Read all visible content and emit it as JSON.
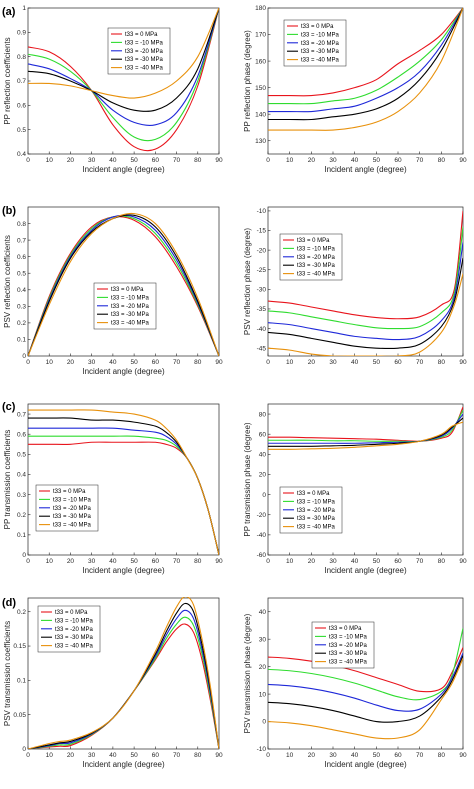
{
  "row_labels": [
    "(a)",
    "(b)",
    "(c)",
    "(d)"
  ],
  "colors": {
    "t33 = 0 MPa": "#e8141c",
    "t33 = -10 MPa": "#2fdc2f",
    "t33 = -20 MPa": "#1e28d8",
    "t33 = -30 MPa": "#000000",
    "t33 = -40 MPa": "#e8910c"
  },
  "chart_data": [
    {
      "type": "line",
      "xlabel": "Incident angle (degree)",
      "ylabel": "PP reflection coefficients",
      "xlim": [
        0,
        90
      ],
      "ylim": [
        0.4,
        1
      ],
      "xticks": [
        "0",
        "10",
        "20",
        "30",
        "40",
        "50",
        "60",
        "70",
        "80",
        "90"
      ],
      "yticks": [
        "0.4",
        "0.5",
        "0.6",
        "0.7",
        "0.8",
        "0.9",
        "1"
      ],
      "legend_position": "top-center",
      "x": [
        0,
        10,
        20,
        30,
        40,
        50,
        60,
        70,
        80,
        90
      ],
      "series": [
        {
          "name": "t33 = 0 MPa",
          "values": [
            0.84,
            0.82,
            0.76,
            0.66,
            0.52,
            0.43,
            0.42,
            0.5,
            0.68,
            1.0
          ]
        },
        {
          "name": "t33 = -10 MPa",
          "values": [
            0.81,
            0.79,
            0.74,
            0.66,
            0.55,
            0.47,
            0.46,
            0.53,
            0.7,
            1.0
          ]
        },
        {
          "name": "t33 = -20 MPa",
          "values": [
            0.77,
            0.75,
            0.71,
            0.66,
            0.58,
            0.53,
            0.52,
            0.57,
            0.72,
            1.0
          ]
        },
        {
          "name": "t33 = -30 MPa",
          "values": [
            0.74,
            0.73,
            0.7,
            0.66,
            0.61,
            0.58,
            0.58,
            0.63,
            0.75,
            1.0
          ]
        },
        {
          "name": "t33 = -40 MPa",
          "values": [
            0.69,
            0.69,
            0.68,
            0.66,
            0.64,
            0.63,
            0.65,
            0.7,
            0.8,
            1.0
          ]
        }
      ]
    },
    {
      "type": "line",
      "xlabel": "Incident angle (degree)",
      "ylabel": "PP reflection phase (degree)",
      "xlim": [
        0,
        90
      ],
      "ylim": [
        125,
        180
      ],
      "xticks": [
        "0",
        "10",
        "20",
        "30",
        "40",
        "50",
        "60",
        "70",
        "80",
        "90"
      ],
      "yticks": [
        "130",
        "140",
        "150",
        "160",
        "170",
        "180"
      ],
      "legend_position": "top-left",
      "x": [
        0,
        10,
        20,
        30,
        40,
        50,
        60,
        70,
        80,
        90
      ],
      "series": [
        {
          "name": "t33 = 0 MPa",
          "values": [
            147,
            147,
            147,
            148,
            150,
            153,
            159,
            164,
            170,
            180
          ]
        },
        {
          "name": "t33 = -10 MPa",
          "values": [
            144,
            144,
            144,
            145,
            146,
            149,
            154,
            160,
            168,
            180
          ]
        },
        {
          "name": "t33 = -20 MPa",
          "values": [
            141,
            141,
            141,
            142,
            143,
            146,
            150,
            156,
            166,
            180
          ]
        },
        {
          "name": "t33 = -30 MPa",
          "values": [
            138,
            138,
            138,
            139,
            140,
            142,
            146,
            153,
            164,
            180
          ]
        },
        {
          "name": "t33 = -40 MPa",
          "values": [
            134,
            134,
            134,
            134,
            135,
            137,
            141,
            148,
            160,
            180
          ]
        }
      ]
    },
    {
      "type": "line",
      "xlabel": "Incident angle (degree)",
      "ylabel": "PSV reflection coefficients",
      "xlim": [
        0,
        90
      ],
      "ylim": [
        0,
        0.9
      ],
      "xticks": [
        "0",
        "10",
        "20",
        "30",
        "40",
        "50",
        "60",
        "70",
        "80",
        "90"
      ],
      "yticks": [
        "0",
        "0.1",
        "0.2",
        "0.3",
        "0.4",
        "0.5",
        "0.6",
        "0.7",
        "0.8"
      ],
      "legend_position": "bottom-center",
      "x": [
        0,
        10,
        20,
        30,
        40,
        50,
        60,
        70,
        80,
        90
      ],
      "series": [
        {
          "name": "t33 = 0 MPa",
          "values": [
            0,
            0.36,
            0.62,
            0.78,
            0.84,
            0.82,
            0.72,
            0.54,
            0.3,
            0
          ]
        },
        {
          "name": "t33 = -10 MPa",
          "values": [
            0,
            0.35,
            0.61,
            0.77,
            0.84,
            0.83,
            0.74,
            0.56,
            0.31,
            0
          ]
        },
        {
          "name": "t33 = -20 MPa",
          "values": [
            0,
            0.34,
            0.6,
            0.76,
            0.84,
            0.84,
            0.76,
            0.58,
            0.32,
            0
          ]
        },
        {
          "name": "t33 = -30 MPa",
          "values": [
            0,
            0.33,
            0.59,
            0.75,
            0.83,
            0.85,
            0.78,
            0.6,
            0.33,
            0
          ]
        },
        {
          "name": "t33 = -40 MPa",
          "values": [
            0,
            0.31,
            0.57,
            0.74,
            0.83,
            0.86,
            0.8,
            0.62,
            0.35,
            0
          ]
        }
      ]
    },
    {
      "type": "line",
      "xlabel": "",
      "ylabel": "PSV reflection phase (degree)",
      "xlim": [
        0,
        90
      ],
      "ylim": [
        -47,
        -9
      ],
      "xticks": [
        "0",
        "10",
        "20",
        "30",
        "40",
        "50",
        "60",
        "70",
        "80",
        "90"
      ],
      "yticks": [
        "-45",
        "-40",
        "-35",
        "-30",
        "-25",
        "-20",
        "-15",
        "-10"
      ],
      "legend_position": "top-left",
      "x": [
        0,
        10,
        20,
        30,
        40,
        50,
        60,
        70,
        80,
        86,
        90
      ],
      "series": [
        {
          "name": "t33 = 0 MPa",
          "values": [
            -33,
            -33.5,
            -34.5,
            -35.5,
            -36.5,
            -37.2,
            -37.5,
            -37,
            -34,
            -30,
            -10
          ]
        },
        {
          "name": "t33 = -10 MPa",
          "values": [
            -35.5,
            -36,
            -37,
            -38,
            -39,
            -39.8,
            -40,
            -39.5,
            -36,
            -31,
            -14
          ]
        },
        {
          "name": "t33 = -20 MPa",
          "values": [
            -38.5,
            -39,
            -40,
            -41,
            -42,
            -42.5,
            -42.8,
            -42,
            -38,
            -32,
            -18
          ]
        },
        {
          "name": "t33 = -30 MPa",
          "values": [
            -41,
            -41.5,
            -42.5,
            -43.5,
            -44.5,
            -45,
            -45,
            -44,
            -39.5,
            -33,
            -22
          ]
        },
        {
          "name": "t33 = -40 MPa",
          "values": [
            -45,
            -45.5,
            -46.5,
            -47,
            -47,
            -47,
            -47,
            -46,
            -41,
            -34,
            -26
          ]
        }
      ]
    },
    {
      "type": "line",
      "xlabel": "Incident angle (degree)",
      "ylabel": "PP transmission coefficients",
      "xlim": [
        0,
        90
      ],
      "ylim": [
        0,
        0.75
      ],
      "xticks": [
        "0",
        "10",
        "20",
        "30",
        "40",
        "50",
        "60",
        "70",
        "80",
        "90"
      ],
      "yticks": [
        "0",
        "0.1",
        "0.2",
        "0.3",
        "0.4",
        "0.5",
        "0.6",
        "0.7"
      ],
      "legend_position": "bottom-left",
      "x": [
        0,
        10,
        20,
        30,
        40,
        50,
        60,
        65,
        70,
        75,
        80,
        85,
        90
      ],
      "series": [
        {
          "name": "t33 = 0 MPa",
          "values": [
            0.55,
            0.55,
            0.55,
            0.56,
            0.56,
            0.56,
            0.56,
            0.55,
            0.53,
            0.48,
            0.38,
            0.22,
            0
          ]
        },
        {
          "name": "t33 = -10 MPa",
          "values": [
            0.59,
            0.59,
            0.59,
            0.59,
            0.59,
            0.59,
            0.58,
            0.57,
            0.54,
            0.48,
            0.38,
            0.22,
            0
          ]
        },
        {
          "name": "t33 = -20 MPa",
          "values": [
            0.63,
            0.63,
            0.63,
            0.63,
            0.63,
            0.62,
            0.61,
            0.59,
            0.55,
            0.48,
            0.38,
            0.22,
            0
          ]
        },
        {
          "name": "t33 = -30 MPa",
          "values": [
            0.68,
            0.68,
            0.68,
            0.67,
            0.67,
            0.66,
            0.64,
            0.61,
            0.56,
            0.48,
            0.38,
            0.22,
            0
          ]
        },
        {
          "name": "t33 = -40 MPa",
          "values": [
            0.72,
            0.72,
            0.72,
            0.72,
            0.71,
            0.7,
            0.67,
            0.63,
            0.57,
            0.48,
            0.38,
            0.22,
            0
          ]
        }
      ]
    },
    {
      "type": "line",
      "xlabel": "Incident angle (degree)",
      "ylabel": "PP transmission phase (degree)",
      "xlim": [
        0,
        90
      ],
      "ylim": [
        -60,
        90
      ],
      "xticks": [
        "0",
        "10",
        "20",
        "30",
        "40",
        "50",
        "60",
        "70",
        "80",
        "90"
      ],
      "yticks": [
        "-60",
        "-40",
        "-20",
        "0",
        "20",
        "40",
        "60",
        "80"
      ],
      "legend_position": "middle-left",
      "x": [
        0,
        10,
        20,
        30,
        40,
        50,
        60,
        70,
        80,
        85,
        90
      ],
      "series": [
        {
          "name": "t33 = 0 MPa",
          "values": [
            57,
            57,
            56.5,
            56,
            55.5,
            55,
            54,
            53,
            56,
            62,
            87
          ]
        },
        {
          "name": "t33 = -10 MPa",
          "values": [
            54,
            54,
            54,
            53.5,
            53.5,
            53,
            53,
            53,
            57,
            64,
            84
          ]
        },
        {
          "name": "t33 = -20 MPa",
          "values": [
            51,
            51,
            51,
            51,
            51,
            51.5,
            52,
            53,
            58,
            66,
            80
          ]
        },
        {
          "name": "t33 = -30 MPa",
          "values": [
            48,
            48,
            48,
            48.5,
            49,
            50,
            51,
            53,
            59,
            67,
            76
          ]
        },
        {
          "name": "t33 = -40 MPa",
          "values": [
            45,
            45,
            45.5,
            46,
            47,
            48.5,
            50,
            53,
            60,
            68,
            72
          ]
        }
      ]
    },
    {
      "type": "line",
      "xlabel": "Incident angle (degree)",
      "ylabel": "PSV transmission coefficients",
      "xlim": [
        0,
        90
      ],
      "ylim": [
        0,
        0.22
      ],
      "xticks": [
        "0",
        "10",
        "20",
        "30",
        "40",
        "50",
        "60",
        "70",
        "80",
        "90"
      ],
      "yticks": [
        "0",
        "0.05",
        "0.1",
        "0.15",
        "0.2"
      ],
      "legend_position": "top-left",
      "x": [
        0,
        10,
        15,
        20,
        30,
        40,
        50,
        60,
        65,
        70,
        74,
        78,
        82,
        86,
        90
      ],
      "series": [
        {
          "name": "t33 = 0 MPa",
          "values": [
            0,
            0.003,
            0.004,
            0.005,
            0.02,
            0.045,
            0.085,
            0.13,
            0.155,
            0.175,
            0.182,
            0.17,
            0.13,
            0.07,
            0
          ]
        },
        {
          "name": "t33 = -10 MPa",
          "values": [
            0,
            0.004,
            0.006,
            0.007,
            0.021,
            0.045,
            0.085,
            0.132,
            0.16,
            0.182,
            0.192,
            0.18,
            0.138,
            0.075,
            0
          ]
        },
        {
          "name": "t33 = -20 MPa",
          "values": [
            0,
            0.005,
            0.008,
            0.009,
            0.022,
            0.045,
            0.085,
            0.135,
            0.165,
            0.19,
            0.202,
            0.19,
            0.145,
            0.08,
            0
          ]
        },
        {
          "name": "t33 = -30 MPa",
          "values": [
            0,
            0.006,
            0.009,
            0.011,
            0.023,
            0.045,
            0.085,
            0.138,
            0.17,
            0.198,
            0.212,
            0.2,
            0.152,
            0.085,
            0
          ]
        },
        {
          "name": "t33 = -40 MPa",
          "values": [
            0,
            0.008,
            0.011,
            0.013,
            0.024,
            0.045,
            0.085,
            0.142,
            0.176,
            0.207,
            0.222,
            0.21,
            0.16,
            0.09,
            0
          ]
        }
      ]
    },
    {
      "type": "line",
      "xlabel": "Incident angle (degree)",
      "ylabel": "PSV transmission phase (degree)",
      "xlim": [
        0,
        90
      ],
      "ylim": [
        -10,
        45
      ],
      "xticks": [
        "0",
        "10",
        "20",
        "30",
        "40",
        "50",
        "60",
        "70",
        "80",
        "90"
      ],
      "yticks": [
        "-10",
        "0",
        "10",
        "20",
        "30",
        "40"
      ],
      "legend_position": "top-center",
      "x": [
        0,
        10,
        20,
        30,
        40,
        50,
        60,
        70,
        80,
        85,
        90
      ],
      "series": [
        {
          "name": "t33 = 0 MPa",
          "values": [
            23.5,
            23,
            22,
            20.5,
            18.5,
            16,
            13.5,
            11,
            12,
            18,
            27
          ]
        },
        {
          "name": "t33 = -10 MPa",
          "values": [
            19,
            18.5,
            17.5,
            16,
            14,
            11.5,
            9,
            8,
            11,
            17,
            34
          ]
        },
        {
          "name": "t33 = -20 MPa",
          "values": [
            13.5,
            13,
            12,
            10.5,
            8.5,
            6,
            4,
            4.5,
            10,
            16,
            25
          ]
        },
        {
          "name": "t33 = -30 MPa",
          "values": [
            7,
            6.5,
            5.5,
            4,
            2,
            0,
            0,
            2,
            9,
            15,
            24
          ]
        },
        {
          "name": "t33 = -40 MPa",
          "values": [
            0,
            -0.5,
            -1.5,
            -3,
            -4.5,
            -6,
            -6,
            -3,
            8,
            14,
            23
          ]
        }
      ]
    }
  ]
}
